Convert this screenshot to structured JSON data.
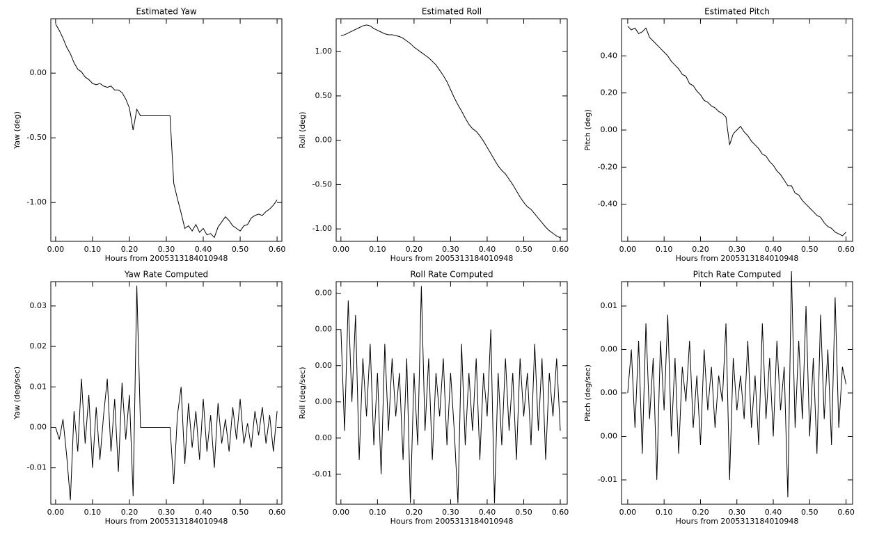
{
  "chart_data": [
    {
      "type": "line",
      "title": "Estimated Yaw",
      "xlabel": "Hours from 2005313184010948",
      "ylabel": "Yaw (deg)",
      "x": [
        0,
        0.01,
        0.02,
        0.03,
        0.04,
        0.05,
        0.06,
        0.07,
        0.08,
        0.09,
        0.1,
        0.11,
        0.12,
        0.13,
        0.14,
        0.15,
        0.16,
        0.17,
        0.18,
        0.19,
        0.2,
        0.21,
        0.22,
        0.23,
        0.24,
        0.25,
        0.26,
        0.27,
        0.28,
        0.29,
        0.3,
        0.31,
        0.32,
        0.33,
        0.34,
        0.35,
        0.36,
        0.37,
        0.38,
        0.39,
        0.4,
        0.41,
        0.42,
        0.43,
        0.44,
        0.45,
        0.46,
        0.47,
        0.48,
        0.49,
        0.5,
        0.51,
        0.52,
        0.53,
        0.54,
        0.55,
        0.56,
        0.57,
        0.58,
        0.59,
        0.6
      ],
      "series": [
        {
          "color": "#000000",
          "values": [
            0.38,
            0.33,
            0.27,
            0.2,
            0.15,
            0.08,
            0.03,
            0.01,
            -0.03,
            -0.05,
            -0.08,
            -0.09,
            -0.08,
            -0.1,
            -0.11,
            -0.1,
            -0.13,
            -0.13,
            -0.15,
            -0.2,
            -0.27,
            -0.44,
            -0.28,
            -0.33,
            -0.33,
            -0.33,
            -0.33,
            -0.33,
            -0.33,
            -0.33,
            -0.33,
            -0.33,
            -0.85,
            -0.97,
            -1.08,
            -1.2,
            -1.18,
            -1.22,
            -1.17,
            -1.23,
            -1.2,
            -1.25,
            -1.24,
            -1.27,
            -1.19,
            -1.15,
            -1.11,
            -1.14,
            -1.18,
            -1.2,
            -1.22,
            -1.18,
            -1.17,
            -1.12,
            -1.1,
            -1.09,
            -1.1,
            -1.07,
            -1.05,
            -1.02,
            -0.98
          ]
        }
      ],
      "xlim": [
        -0.013,
        0.613
      ],
      "xticks": [
        {
          "value": 0,
          "label": "0.00"
        },
        {
          "value": 0.1,
          "label": "0.10"
        },
        {
          "value": 0.2,
          "label": "0.20"
        },
        {
          "value": 0.3,
          "label": "0.30"
        },
        {
          "value": 0.4,
          "label": "0.40"
        },
        {
          "value": 0.5,
          "label": "0.50"
        },
        {
          "value": 0.6,
          "label": "0.60"
        }
      ],
      "ylim": [
        -1.3,
        0.42
      ],
      "yticks": [
        {
          "value": 0,
          "label": "0.00"
        },
        {
          "value": -0.5,
          "label": "-0.50"
        },
        {
          "value": -1,
          "label": "-1.00"
        }
      ]
    },
    {
      "type": "line",
      "title": "Estimated Roll",
      "xlabel": "Hours from 2005313184010948",
      "ylabel": "Roll (deg)",
      "x": [
        0,
        0.01,
        0.02,
        0.03,
        0.04,
        0.05,
        0.06,
        0.07,
        0.08,
        0.09,
        0.1,
        0.11,
        0.12,
        0.13,
        0.14,
        0.15,
        0.16,
        0.17,
        0.18,
        0.19,
        0.2,
        0.21,
        0.22,
        0.23,
        0.24,
        0.25,
        0.26,
        0.27,
        0.28,
        0.29,
        0.3,
        0.31,
        0.32,
        0.33,
        0.34,
        0.35,
        0.36,
        0.37,
        0.38,
        0.39,
        0.4,
        0.41,
        0.42,
        0.43,
        0.44,
        0.45,
        0.46,
        0.47,
        0.48,
        0.49,
        0.5,
        0.51,
        0.52,
        0.53,
        0.54,
        0.55,
        0.56,
        0.57,
        0.58,
        0.59,
        0.6
      ],
      "series": [
        {
          "color": "#000000",
          "values": [
            1.18,
            1.19,
            1.21,
            1.23,
            1.25,
            1.27,
            1.29,
            1.3,
            1.29,
            1.26,
            1.24,
            1.22,
            1.2,
            1.19,
            1.19,
            1.18,
            1.17,
            1.15,
            1.12,
            1.09,
            1.05,
            1.02,
            0.99,
            0.96,
            0.93,
            0.89,
            0.85,
            0.79,
            0.73,
            0.66,
            0.57,
            0.48,
            0.4,
            0.33,
            0.25,
            0.18,
            0.13,
            0.1,
            0.05,
            -0.01,
            -0.08,
            -0.15,
            -0.22,
            -0.29,
            -0.34,
            -0.38,
            -0.44,
            -0.5,
            -0.57,
            -0.64,
            -0.7,
            -0.75,
            -0.78,
            -0.83,
            -0.88,
            -0.93,
            -0.98,
            -1.02,
            -1.05,
            -1.08,
            -1.1
          ]
        }
      ],
      "xlim": [
        -0.013,
        0.619
      ],
      "xticks": [
        {
          "value": 0,
          "label": "0.00"
        },
        {
          "value": 0.1,
          "label": "0.10"
        },
        {
          "value": 0.2,
          "label": "0.20"
        },
        {
          "value": 0.3,
          "label": "0.30"
        },
        {
          "value": 0.4,
          "label": "0.40"
        },
        {
          "value": 0.5,
          "label": "0.50"
        },
        {
          "value": 0.6,
          "label": "0.60"
        }
      ],
      "ylim": [
        -1.14,
        1.37
      ],
      "yticks": [
        {
          "value": 1,
          "label": "1.00"
        },
        {
          "value": 0.5,
          "label": "0.50"
        },
        {
          "value": 0,
          "label": "0.00"
        },
        {
          "value": -0.5,
          "label": "-0.50"
        },
        {
          "value": -1,
          "label": "-1.00"
        }
      ]
    },
    {
      "type": "line",
      "title": "Estimated Pitch",
      "xlabel": "Hours from 2005313184010948",
      "ylabel": "Pitch (deg)",
      "x": [
        0,
        0.01,
        0.02,
        0.03,
        0.04,
        0.05,
        0.06,
        0.07,
        0.08,
        0.09,
        0.1,
        0.11,
        0.12,
        0.13,
        0.14,
        0.15,
        0.16,
        0.17,
        0.18,
        0.19,
        0.2,
        0.21,
        0.22,
        0.23,
        0.24,
        0.25,
        0.26,
        0.27,
        0.28,
        0.29,
        0.3,
        0.31,
        0.32,
        0.33,
        0.34,
        0.35,
        0.36,
        0.37,
        0.38,
        0.39,
        0.4,
        0.41,
        0.42,
        0.43,
        0.44,
        0.45,
        0.46,
        0.47,
        0.48,
        0.49,
        0.5,
        0.51,
        0.52,
        0.53,
        0.54,
        0.55,
        0.56,
        0.57,
        0.58,
        0.59,
        0.6
      ],
      "series": [
        {
          "color": "#000000",
          "values": [
            0.56,
            0.54,
            0.55,
            0.52,
            0.53,
            0.55,
            0.5,
            0.48,
            0.46,
            0.44,
            0.42,
            0.4,
            0.37,
            0.35,
            0.33,
            0.3,
            0.29,
            0.25,
            0.24,
            0.21,
            0.19,
            0.16,
            0.15,
            0.13,
            0.12,
            0.1,
            0.09,
            0.07,
            -0.08,
            -0.02,
            0,
            0.02,
            -0.01,
            -0.03,
            -0.06,
            -0.08,
            -0.1,
            -0.13,
            -0.14,
            -0.17,
            -0.19,
            -0.22,
            -0.24,
            -0.27,
            -0.3,
            -0.3,
            -0.34,
            -0.35,
            -0.38,
            -0.4,
            -0.42,
            -0.44,
            -0.46,
            -0.47,
            -0.5,
            -0.52,
            -0.53,
            -0.55,
            -0.56,
            -0.57,
            -0.55
          ]
        }
      ],
      "xlim": [
        -0.017,
        0.618
      ],
      "xticks": [
        {
          "value": 0,
          "label": "0.00"
        },
        {
          "value": 0.1,
          "label": "0.10"
        },
        {
          "value": 0.2,
          "label": "0.20"
        },
        {
          "value": 0.3,
          "label": "0.30"
        },
        {
          "value": 0.4,
          "label": "0.40"
        },
        {
          "value": 0.5,
          "label": "0.50"
        },
        {
          "value": 0.6,
          "label": "0.60"
        }
      ],
      "ylim": [
        -0.6,
        0.6
      ],
      "yticks": [
        {
          "value": 0.4,
          "label": "0.40"
        },
        {
          "value": 0.2,
          "label": "0.20"
        },
        {
          "value": 0,
          "label": "0.00"
        },
        {
          "value": -0.2,
          "label": "-0.20"
        },
        {
          "value": -0.4,
          "label": "-0.40"
        }
      ]
    },
    {
      "type": "line",
      "title": "Yaw Rate Computed",
      "xlabel": "Hours from 2005313184010948",
      "ylabel": "Yaw (deg/sec)",
      "x": [
        0,
        0.01,
        0.02,
        0.03,
        0.04,
        0.05,
        0.06,
        0.07,
        0.08,
        0.09,
        0.1,
        0.11,
        0.12,
        0.13,
        0.14,
        0.15,
        0.16,
        0.17,
        0.18,
        0.19,
        0.2,
        0.21,
        0.22,
        0.23,
        0.24,
        0.25,
        0.26,
        0.27,
        0.28,
        0.29,
        0.3,
        0.31,
        0.32,
        0.33,
        0.34,
        0.35,
        0.36,
        0.37,
        0.38,
        0.39,
        0.4,
        0.41,
        0.42,
        0.43,
        0.44,
        0.45,
        0.46,
        0.47,
        0.48,
        0.49,
        0.5,
        0.51,
        0.52,
        0.53,
        0.54,
        0.55,
        0.56,
        0.57,
        0.58,
        0.59,
        0.6
      ],
      "series": [
        {
          "color": "#000000",
          "values": [
            0,
            -0.003,
            0.002,
            -0.007,
            -0.018,
            0.004,
            -0.006,
            0.012,
            -0.004,
            0.008,
            -0.01,
            0.005,
            -0.008,
            0.003,
            0.012,
            -0.006,
            0.007,
            -0.011,
            0.011,
            -0.003,
            0.008,
            -0.017,
            0.035,
            0,
            0,
            0,
            0,
            0,
            0,
            0,
            0,
            0,
            -0.014,
            0.003,
            0.01,
            -0.009,
            0.006,
            -0.005,
            0.004,
            -0.008,
            0.007,
            -0.006,
            0.003,
            -0.01,
            0.006,
            -0.004,
            0.002,
            -0.006,
            0.005,
            -0.003,
            0.007,
            -0.004,
            0.001,
            -0.005,
            0.004,
            -0.002,
            0.005,
            -0.004,
            0.003,
            -0.006,
            0.004
          ]
        }
      ],
      "xlim": [
        -0.013,
        0.613
      ],
      "xticks": [
        {
          "value": 0,
          "label": "0.00"
        },
        {
          "value": 0.1,
          "label": "0.10"
        },
        {
          "value": 0.2,
          "label": "0.20"
        },
        {
          "value": 0.3,
          "label": "0.30"
        },
        {
          "value": 0.4,
          "label": "0.40"
        },
        {
          "value": 0.5,
          "label": "0.50"
        },
        {
          "value": 0.6,
          "label": "0.60"
        }
      ],
      "ylim": [
        -0.019,
        0.036
      ],
      "yticks": [
        0.03,
        0.02,
        0.01,
        {
          "value": 0,
          "label": "0.00"
        },
        -0.01
      ]
    },
    {
      "type": "line",
      "title": "Roll Rate Computed",
      "xlabel": "Hours from 2005313184010948",
      "ylabel": "Roll (deg/sec)",
      "x": [
        0,
        0.01,
        0.02,
        0.03,
        0.04,
        0.05,
        0.06,
        0.07,
        0.08,
        0.09,
        0.1,
        0.11,
        0.12,
        0.13,
        0.14,
        0.15,
        0.16,
        0.17,
        0.18,
        0.19,
        0.2,
        0.21,
        0.22,
        0.23,
        0.24,
        0.25,
        0.26,
        0.27,
        0.28,
        0.29,
        0.3,
        0.31,
        0.32,
        0.33,
        0.34,
        0.35,
        0.36,
        0.37,
        0.38,
        0.39,
        0.4,
        0.41,
        0.42,
        0.43,
        0.44,
        0.45,
        0.46,
        0.47,
        0.48,
        0.49,
        0.5,
        0.51,
        0.52,
        0.53,
        0.54,
        0.55,
        0.56,
        0.57,
        0.58,
        0.59,
        0.6
      ],
      "series": [
        {
          "color": "#000000",
          "values": [
            0.005,
            -0.002,
            0.007,
            0,
            0.006,
            -0.004,
            0.003,
            -0.001,
            0.004,
            -0.003,
            0.002,
            -0.005,
            0.004,
            -0.002,
            0.003,
            -0.001,
            0.002,
            -0.004,
            0.003,
            -0.007,
            0.002,
            -0.003,
            0.008,
            -0.002,
            0.003,
            -0.004,
            0.002,
            -0.001,
            0.003,
            -0.003,
            0.002,
            -0.002,
            -0.007,
            0.004,
            -0.003,
            0.002,
            -0.002,
            0.003,
            -0.004,
            0.002,
            -0.001,
            0.005,
            -0.007,
            0.002,
            -0.003,
            0.003,
            -0.002,
            0.002,
            -0.004,
            0.003,
            -0.001,
            0.002,
            -0.003,
            0.004,
            -0.002,
            0.003,
            -0.004,
            0.002,
            -0.001,
            0.003,
            -0.002
          ]
        }
      ],
      "xlim": [
        -0.013,
        0.619
      ],
      "xticks": [
        {
          "value": 0,
          "label": "0.00"
        },
        {
          "value": 0.1,
          "label": "0.10"
        },
        {
          "value": 0.2,
          "label": "0.20"
        },
        {
          "value": 0.3,
          "label": "0.30"
        },
        {
          "value": 0.4,
          "label": "0.40"
        },
        {
          "value": 0.5,
          "label": "0.50"
        },
        {
          "value": 0.6,
          "label": "0.60"
        }
      ],
      "ylim": [
        -0.00707,
        0.0083
      ],
      "yticks": [
        {
          "value": 0.0075,
          "label": "0.00"
        },
        {
          "value": 0.005,
          "label": "0.00"
        },
        {
          "value": 0.0025,
          "label": "0.00"
        },
        {
          "value": 0,
          "label": "0.00"
        },
        {
          "value": -0.0025,
          "label": "0.00"
        },
        {
          "value": -0.005,
          "label": "-0.01"
        }
      ]
    },
    {
      "type": "line",
      "title": "Pitch Rate Computed",
      "xlabel": "Hours from 2005313184010948",
      "ylabel": "Pitch (deg/sec)",
      "x": [
        0,
        0.01,
        0.02,
        0.03,
        0.04,
        0.05,
        0.06,
        0.07,
        0.08,
        0.09,
        0.1,
        0.11,
        0.12,
        0.13,
        0.14,
        0.15,
        0.16,
        0.17,
        0.18,
        0.19,
        0.2,
        0.21,
        0.22,
        0.23,
        0.24,
        0.25,
        0.26,
        0.27,
        0.28,
        0.29,
        0.3,
        0.31,
        0.32,
        0.33,
        0.34,
        0.35,
        0.36,
        0.37,
        0.38,
        0.39,
        0.4,
        0.41,
        0.42,
        0.43,
        0.44,
        0.45,
        0.46,
        0.47,
        0.48,
        0.49,
        0.5,
        0.51,
        0.52,
        0.53,
        0.54,
        0.55,
        0.56,
        0.57,
        0.58,
        0.59,
        0.6
      ],
      "series": [
        {
          "color": "#000000",
          "values": [
            0,
            0.005,
            -0.004,
            0.006,
            -0.007,
            0.008,
            -0.003,
            0.004,
            -0.01,
            0.006,
            -0.002,
            0.009,
            -0.005,
            0.004,
            -0.007,
            0.003,
            -0.001,
            0.006,
            -0.004,
            0.002,
            -0.006,
            0.005,
            -0.002,
            0.003,
            -0.004,
            0.002,
            -0.001,
            0.008,
            -0.01,
            0.004,
            -0.002,
            0.002,
            -0.003,
            0.006,
            -0.004,
            0.002,
            -0.006,
            0.008,
            -0.003,
            0.004,
            -0.005,
            0.006,
            -0.002,
            0.003,
            -0.012,
            0.014,
            -0.004,
            0.006,
            -0.003,
            0.01,
            -0.005,
            0.004,
            -0.007,
            0.009,
            -0.003,
            0.005,
            -0.006,
            0.011,
            -0.004,
            0.003,
            0.001
          ]
        }
      ],
      "xlim": [
        -0.017,
        0.618
      ],
      "xticks": [
        {
          "value": 0,
          "label": "0.00"
        },
        {
          "value": 0.1,
          "label": "0.10"
        },
        {
          "value": 0.2,
          "label": "0.20"
        },
        {
          "value": 0.3,
          "label": "0.30"
        },
        {
          "value": 0.4,
          "label": "0.40"
        },
        {
          "value": 0.5,
          "label": "0.50"
        },
        {
          "value": 0.6,
          "label": "0.60"
        }
      ],
      "ylim": [
        -0.0128,
        0.0128
      ],
      "yticks": [
        0.01,
        {
          "value": 0.005,
          "label": "0.00"
        },
        {
          "value": 0,
          "label": "0.00"
        },
        {
          "value": -0.005,
          "label": "0.00"
        },
        -0.01
      ]
    }
  ]
}
